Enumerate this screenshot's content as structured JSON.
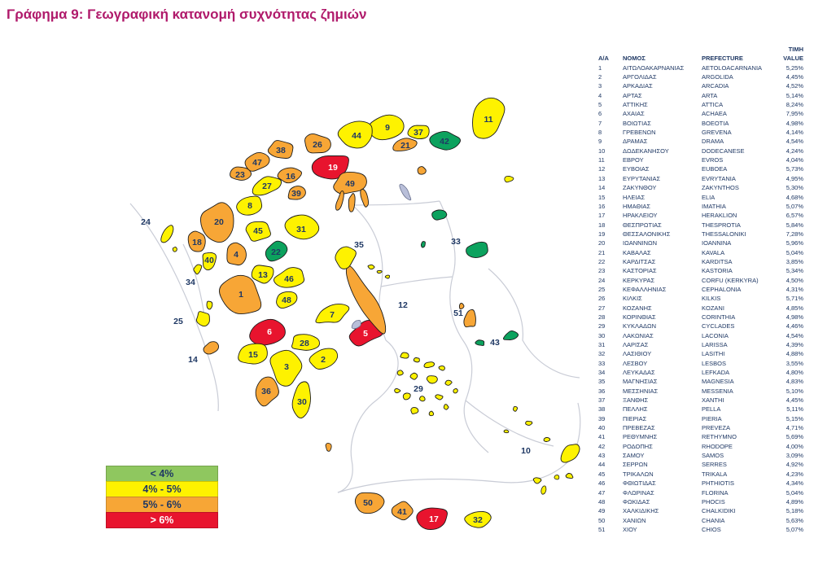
{
  "title": "Γράφημα 9: Γεωγραφική κατανομή συχνότητας ζημιών",
  "colors": {
    "title_magenta": "#B01A6B",
    "text_navy": "#1F3864",
    "map_green": "#0CA25E",
    "legend_green": "#8FC75F",
    "yellow": "#FEF200",
    "orange": "#F7A636",
    "red": "#E8142E",
    "gray_region": "#B9BFD9",
    "sea_line": "#C9CCD6",
    "region_border": "#1B1B1B",
    "label_on_red": "#FFFFFF"
  },
  "legend": [
    {
      "label": "< 4%",
      "bucket": "green"
    },
    {
      "label": "4% - 5%",
      "bucket": "yellow"
    },
    {
      "label": "5% - 6%",
      "bucket": "orange"
    },
    {
      "label": "> 6%",
      "bucket": "red"
    }
  ],
  "table": {
    "headers": {
      "aa": "Α/Α",
      "nomos": "ΝΟΜΟΣ",
      "prefecture": "PREFECTURE",
      "value_line1": "ΤΙΜΗ",
      "value_line2": "VALUE"
    },
    "rows": [
      {
        "id": 1,
        "nomos": "ΑΙΤΩΛΟΑΚΑΡΝΑΝΙΑΣ",
        "prefecture": "AETOLOACARNANIA",
        "value": "5,25%"
      },
      {
        "id": 2,
        "nomos": "ΑΡΓΟΛΙΔΑΣ",
        "prefecture": "ARGOLIDA",
        "value": "4,45%"
      },
      {
        "id": 3,
        "nomos": "ΑΡΚΑΔΙΑΣ",
        "prefecture": "ARCADIA",
        "value": "4,52%"
      },
      {
        "id": 4,
        "nomos": "ΑΡΤΑΣ",
        "prefecture": "ARTA",
        "value": "5,14%"
      },
      {
        "id": 5,
        "nomos": "ΑΤΤΙΚΗΣ",
        "prefecture": "ATTICA",
        "value": "8,24%"
      },
      {
        "id": 6,
        "nomos": "ΑΧΑΙΑΣ",
        "prefecture": "ACHAEA",
        "value": "7,95%"
      },
      {
        "id": 7,
        "nomos": "ΒΟΙΩΤΙΑΣ",
        "prefecture": "BOEOTIA",
        "value": "4,98%"
      },
      {
        "id": 8,
        "nomos": "ΓΡΕΒΕΝΩΝ",
        "prefecture": "GREVENA",
        "value": "4,14%"
      },
      {
        "id": 9,
        "nomos": "ΔΡΑΜΑΣ",
        "prefecture": "DRAMA",
        "value": "4,54%"
      },
      {
        "id": 10,
        "nomos": "ΔΩΔΕΚΑΝΗΣΟΥ",
        "prefecture": "DODECANESE",
        "value": "4,24%"
      },
      {
        "id": 11,
        "nomos": "ΕΒΡΟΥ",
        "prefecture": "EVROS",
        "value": "4,04%"
      },
      {
        "id": 12,
        "nomos": "ΕΥΒΟΙΑΣ",
        "prefecture": "EUBOEA",
        "value": "5,73%"
      },
      {
        "id": 13,
        "nomos": "ΕΥΡΥΤΑΝΙΑΣ",
        "prefecture": "EVRYTANIA",
        "value": "4,95%"
      },
      {
        "id": 14,
        "nomos": "ΖΑΚΥΝΘΟΥ",
        "prefecture": "ZAKYNTHOS",
        "value": "5,30%"
      },
      {
        "id": 15,
        "nomos": "ΗΛΕΙΑΣ",
        "prefecture": "ELIA",
        "value": "4,68%"
      },
      {
        "id": 16,
        "nomos": "ΗΜΑΘΙΑΣ",
        "prefecture": "IMATHIA",
        "value": "5,07%"
      },
      {
        "id": 17,
        "nomos": "ΗΡΑΚΛΕΙΟΥ",
        "prefecture": "HERAKLION",
        "value": "6,57%"
      },
      {
        "id": 18,
        "nomos": "ΘΕΣΠΡΩΤΙΑΣ",
        "prefecture": "THESPROTIA",
        "value": "5,84%"
      },
      {
        "id": 19,
        "nomos": "ΘΕΣΣΑΛΟΝΙΚΗΣ",
        "prefecture": "THESSALONIKI",
        "value": "7,28%"
      },
      {
        "id": 20,
        "nomos": "ΙΩΑΝΝΙΝΩΝ",
        "prefecture": "IOANNINA",
        "value": "5,96%"
      },
      {
        "id": 21,
        "nomos": "ΚΑΒΑΛΑΣ",
        "prefecture": "KAVALA",
        "value": "5,04%"
      },
      {
        "id": 22,
        "nomos": "ΚΑΡΔΙΤΣΑΣ",
        "prefecture": "KARDITSA",
        "value": "3,85%"
      },
      {
        "id": 23,
        "nomos": "ΚΑΣΤΟΡΙΑΣ",
        "prefecture": "KASTORIA",
        "value": "5,34%"
      },
      {
        "id": 24,
        "nomos": "ΚΕΡΚΥΡΑΣ",
        "prefecture": "CORFU (KERKYRA)",
        "value": "4,50%"
      },
      {
        "id": 25,
        "nomos": "ΚΕΦΑΛΛΗΝΙΑΣ",
        "prefecture": "CEPHALONIA",
        "value": "4,31%"
      },
      {
        "id": 26,
        "nomos": "ΚΙΛΚΙΣ",
        "prefecture": "KILKIS",
        "value": "5,71%"
      },
      {
        "id": 27,
        "nomos": "ΚΟΖΑΝΗΣ",
        "prefecture": "KOZANI",
        "value": "4,85%"
      },
      {
        "id": 28,
        "nomos": "ΚΟΡΙΝΘΙΑΣ",
        "prefecture": "CORINTHIA",
        "value": "4,98%"
      },
      {
        "id": 29,
        "nomos": "ΚΥΚΛΑΔΩΝ",
        "prefecture": "CYCLADES",
        "value": "4,46%"
      },
      {
        "id": 30,
        "nomos": "ΛΑΚΩΝΙΑΣ",
        "prefecture": "LACONIA",
        "value": "4,54%"
      },
      {
        "id": 31,
        "nomos": "ΛΑΡΙΣΑΣ",
        "prefecture": "LARISSA",
        "value": "4,39%"
      },
      {
        "id": 32,
        "nomos": "ΛΑΣΙΘΙΟΥ",
        "prefecture": "LASITHI",
        "value": "4,88%"
      },
      {
        "id": 33,
        "nomos": "ΛΕΣΒΟΥ",
        "prefecture": "LESBOS",
        "value": "3,55%"
      },
      {
        "id": 34,
        "nomos": "ΛΕΥΚΑΔΑΣ",
        "prefecture": "LEFKADA",
        "value": "4,80%"
      },
      {
        "id": 35,
        "nomos": "ΜΑΓΝΗΣΙΑΣ",
        "prefecture": "MAGNESIA",
        "value": "4,83%"
      },
      {
        "id": 36,
        "nomos": "ΜΕΣΣΗΝΙΑΣ",
        "prefecture": "MESSENIA",
        "value": "5,10%"
      },
      {
        "id": 37,
        "nomos": "ΞΑΝΘΗΣ",
        "prefecture": "XANTHI",
        "value": "4,45%"
      },
      {
        "id": 38,
        "nomos": "ΠΕΛΛΗΣ",
        "prefecture": "PELLA",
        "value": "5,11%"
      },
      {
        "id": 39,
        "nomos": "ΠΙΕΡΙΑΣ",
        "prefecture": "PIERIA",
        "value": "5,15%"
      },
      {
        "id": 40,
        "nomos": "ΠΡΕΒΕΖΑΣ",
        "prefecture": "PREVEZA",
        "value": "4,71%"
      },
      {
        "id": 41,
        "nomos": "ΡΕΘΥΜΝΗΣ",
        "prefecture": "RETHYMNO",
        "value": "5,69%"
      },
      {
        "id": 42,
        "nomos": "ΡΟΔΟΠΗΣ",
        "prefecture": "RHODOPE",
        "value": "4,00%"
      },
      {
        "id": 43,
        "nomos": "ΣΑΜΟΥ",
        "prefecture": "SAMOS",
        "value": "3,09%"
      },
      {
        "id": 44,
        "nomos": "ΣΕΡΡΩΝ",
        "prefecture": "SERRES",
        "value": "4,92%"
      },
      {
        "id": 45,
        "nomos": "ΤΡΙΚΑΛΩΝ",
        "prefecture": "TRIKALA",
        "value": "4,23%"
      },
      {
        "id": 46,
        "nomos": "ΦΘΙΩΤΙΔΑΣ",
        "prefecture": "PHTHIOTIS",
        "value": "4,34%"
      },
      {
        "id": 47,
        "nomos": "ΦΛΩΡΙΝΑΣ",
        "prefecture": "FLORINA",
        "value": "5,04%"
      },
      {
        "id": 48,
        "nomos": "ΦΩΚΙΔΑΣ",
        "prefecture": "PHOCIS",
        "value": "4,89%"
      },
      {
        "id": 49,
        "nomos": "ΧΑΛΚΙΔΙΚΗΣ",
        "prefecture": "CHALKIDIKI",
        "value": "5,18%"
      },
      {
        "id": 50,
        "nomos": "ΧΑΝΙΩΝ",
        "prefecture": "CHANIA",
        "value": "5,63%"
      },
      {
        "id": 51,
        "nomos": "ΧΙΟΥ",
        "prefecture": "CHIOS",
        "value": "5,07%"
      }
    ]
  },
  "chart_data": {
    "type": "heatmap",
    "subtype": "choropleth-map-greece-prefectures",
    "title": "Γράφημα 9: Γεωγραφική κατανομή συχνότητας ζημιών",
    "unit": "percent",
    "legend_position": "bottom-left",
    "bins": [
      {
        "label": "< 4%",
        "color_role": "green"
      },
      {
        "label": "4% - 5%",
        "color_role": "yellow"
      },
      {
        "label": "5% - 6%",
        "color_role": "orange"
      },
      {
        "label": "> 6%",
        "color_role": "red"
      }
    ],
    "categories": [
      "AETOLOACARNANIA",
      "ARGOLIDA",
      "ARCADIA",
      "ARTA",
      "ATTICA",
      "ACHAEA",
      "BOEOTIA",
      "GREVENA",
      "DRAMA",
      "DODECANESE",
      "EVROS",
      "EUBOEA",
      "EVRYTANIA",
      "ZAKYNTHOS",
      "ELIA",
      "IMATHIA",
      "HERAKLION",
      "THESPROTIA",
      "THESSALONIKI",
      "IOANNINA",
      "KAVALA",
      "KARDITSA",
      "KASTORIA",
      "CORFU (KERKYRA)",
      "CEPHALONIA",
      "KILKIS",
      "KOZANI",
      "CORINTHIA",
      "CYCLADES",
      "LACONIA",
      "LARISSA",
      "LASITHI",
      "LESBOS",
      "LEFKADA",
      "MAGNESIA",
      "MESSENIA",
      "XANTHI",
      "PELLA",
      "PIERIA",
      "PREVEZA",
      "RETHYMNO",
      "RHODOPE",
      "SAMOS",
      "SERRES",
      "TRIKALA",
      "PHTHIOTIS",
      "FLORINA",
      "PHOCIS",
      "CHALKIDIKI",
      "CHANIA",
      "CHIOS"
    ],
    "categories_el": [
      "ΑΙΤΩΛΟΑΚΑΡΝΑΝΙΑΣ",
      "ΑΡΓΟΛΙΔΑΣ",
      "ΑΡΚΑΔΙΑΣ",
      "ΑΡΤΑΣ",
      "ΑΤΤΙΚΗΣ",
      "ΑΧΑΙΑΣ",
      "ΒΟΙΩΤΙΑΣ",
      "ΓΡΕΒΕΝΩΝ",
      "ΔΡΑΜΑΣ",
      "ΔΩΔΕΚΑΝΗΣΟΥ",
      "ΕΒΡΟΥ",
      "ΕΥΒΟΙΑΣ",
      "ΕΥΡΥΤΑΝΙΑΣ",
      "ΖΑΚΥΝΘΟΥ",
      "ΗΛΕΙΑΣ",
      "ΗΜΑΘΙΑΣ",
      "ΗΡΑΚΛΕΙΟΥ",
      "ΘΕΣΠΡΩΤΙΑΣ",
      "ΘΕΣΣΑΛΟΝΙΚΗΣ",
      "ΙΩΑΝΝΙΝΩΝ",
      "ΚΑΒΑΛΑΣ",
      "ΚΑΡΔΙΤΣΑΣ",
      "ΚΑΣΤΟΡΙΑΣ",
      "ΚΕΡΚΥΡΑΣ",
      "ΚΕΦΑΛΛΗΝΙΑΣ",
      "ΚΙΛΚΙΣ",
      "ΚΟΖΑΝΗΣ",
      "ΚΟΡΙΝΘΙΑΣ",
      "ΚΥΚΛΑΔΩΝ",
      "ΛΑΚΩΝΙΑΣ",
      "ΛΑΡΙΣΑΣ",
      "ΛΑΣΙΘΙΟΥ",
      "ΛΕΣΒΟΥ",
      "ΛΕΥΚΑΔΑΣ",
      "ΜΑΓΝΗΣΙΑΣ",
      "ΜΕΣΣΗΝΙΑΣ",
      "ΞΑΝΘΗΣ",
      "ΠΕΛΛΗΣ",
      "ΠΙΕΡΙΑΣ",
      "ΠΡΕΒΕΖΑΣ",
      "ΡΕΘΥΜΝΗΣ",
      "ΡΟΔΟΠΗΣ",
      "ΣΑΜΟΥ",
      "ΣΕΡΡΩΝ",
      "ΤΡΙΚΑΛΩΝ",
      "ΦΘΙΩΤΙΔΑΣ",
      "ΦΛΩΡΙΝΑΣ",
      "ΦΩΚΙΔΑΣ",
      "ΧΑΛΚΙΔΙΚΗΣ",
      "ΧΑΝΙΩΝ",
      "ΧΙΟΥ"
    ],
    "values": [
      5.25,
      4.45,
      4.52,
      5.14,
      8.24,
      7.95,
      4.98,
      4.14,
      4.54,
      4.24,
      4.04,
      5.73,
      4.95,
      5.3,
      4.68,
      5.07,
      6.57,
      5.84,
      7.28,
      5.96,
      5.04,
      3.85,
      5.34,
      4.5,
      4.31,
      5.71,
      4.85,
      4.98,
      4.46,
      4.54,
      4.39,
      4.88,
      3.55,
      4.8,
      4.83,
      5.1,
      4.45,
      5.11,
      5.15,
      4.71,
      5.69,
      4.0,
      3.09,
      4.92,
      4.23,
      4.34,
      5.04,
      4.89,
      5.18,
      5.63,
      5.07
    ]
  }
}
